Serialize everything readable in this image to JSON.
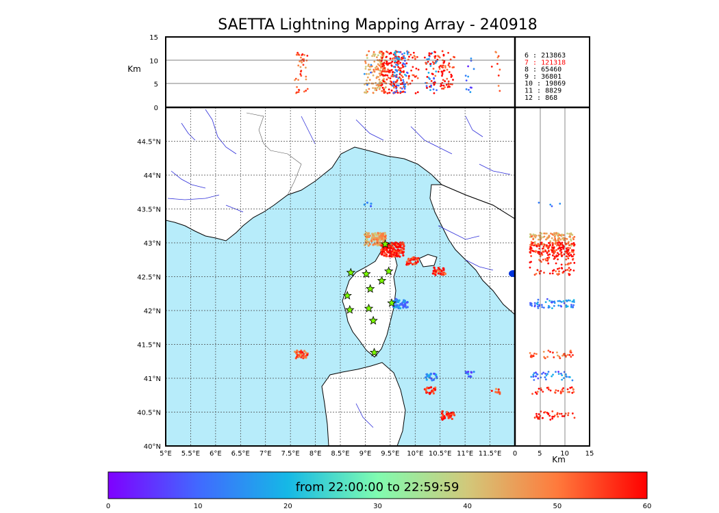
{
  "title": "SAETTA Lightning Mapping Array - 240918",
  "colors": {
    "sea": "#b7ecfa",
    "land": "#ffffff",
    "coast": "#000000",
    "rivers": "#2b2bd9",
    "borders": "#555555",
    "grid": "#444444",
    "station_fill": "#7cfc00",
    "highlight_count": "#ff0000"
  },
  "altitude_panel": {
    "ylabel": "Km",
    "yticks": [
      "0",
      "5",
      "10",
      "15"
    ]
  },
  "side_panel": {
    "xlabel": "Km",
    "xticks": [
      "0",
      "5",
      "10",
      "15"
    ]
  },
  "map": {
    "lon_ticks": [
      "5°E",
      "5.5°E",
      "6°E",
      "6.5°E",
      "7°E",
      "7.5°E",
      "8°E",
      "8.5°E",
      "9°E",
      "9.5°E",
      "10°E",
      "10.5°E",
      "11°E",
      "11.5°E"
    ],
    "lat_ticks": [
      "40°N",
      "40.5°N",
      "41°N",
      "41.5°N",
      "42°N",
      "42.5°N",
      "43°N",
      "43.5°N",
      "44°N",
      "44.5°N"
    ],
    "lon_range": [
      5,
      12
    ],
    "lat_range": [
      40,
      45
    ]
  },
  "stations": [
    {
      "lon": 9.4,
      "lat": 42.98
    },
    {
      "lon": 8.71,
      "lat": 42.56
    },
    {
      "lon": 9.02,
      "lat": 42.54
    },
    {
      "lon": 9.47,
      "lat": 42.58
    },
    {
      "lon": 9.33,
      "lat": 42.44
    },
    {
      "lon": 9.1,
      "lat": 42.32
    },
    {
      "lon": 8.64,
      "lat": 42.22
    },
    {
      "lon": 9.53,
      "lat": 42.11
    },
    {
      "lon": 8.69,
      "lat": 42.01
    },
    {
      "lon": 9.07,
      "lat": 42.03
    },
    {
      "lon": 9.16,
      "lat": 41.85
    },
    {
      "lon": 9.18,
      "lat": 41.38
    }
  ],
  "counts": [
    {
      "label": " 6  :  213863",
      "highlight": false
    },
    {
      "label": " 7  :  121318",
      "highlight": true
    },
    {
      "label": " 8  :   65460",
      "highlight": false
    },
    {
      "label": " 9  :   36801",
      "highlight": false
    },
    {
      "label": "10  :   19869",
      "highlight": false
    },
    {
      "label": "11  :    8829",
      "highlight": false
    },
    {
      "label": "12  :     868",
      "highlight": false
    }
  ],
  "colorbar": {
    "label": "from 22:00:00 to 22:59:59",
    "ticks": [
      "0",
      "10",
      "20",
      "30",
      "40",
      "50",
      "60"
    ],
    "min": 0,
    "max": 60
  },
  "lightning_clusters": [
    {
      "lon": 9.2,
      "lat": 43.05,
      "t": 45,
      "n": 140
    },
    {
      "lon": 9.55,
      "lat": 42.9,
      "t": 58,
      "n": 170
    },
    {
      "lon": 9.95,
      "lat": 42.73,
      "t": 56,
      "n": 30
    },
    {
      "lon": 9.7,
      "lat": 42.1,
      "t": 14,
      "n": 60
    },
    {
      "lon": 10.48,
      "lat": 42.58,
      "t": 56,
      "n": 35
    },
    {
      "lon": 7.72,
      "lat": 41.35,
      "t": 52,
      "n": 40
    },
    {
      "lon": 10.32,
      "lat": 41.02,
      "t": 14,
      "n": 25
    },
    {
      "lon": 11.1,
      "lat": 41.06,
      "t": 10,
      "n": 12
    },
    {
      "lon": 10.3,
      "lat": 40.82,
      "t": 58,
      "n": 22
    },
    {
      "lon": 10.66,
      "lat": 40.45,
      "t": 58,
      "n": 40
    },
    {
      "lon": 11.62,
      "lat": 40.81,
      "t": 52,
      "n": 10
    },
    {
      "lon": 9.05,
      "lat": 43.57,
      "t": 12,
      "n": 4
    }
  ]
}
